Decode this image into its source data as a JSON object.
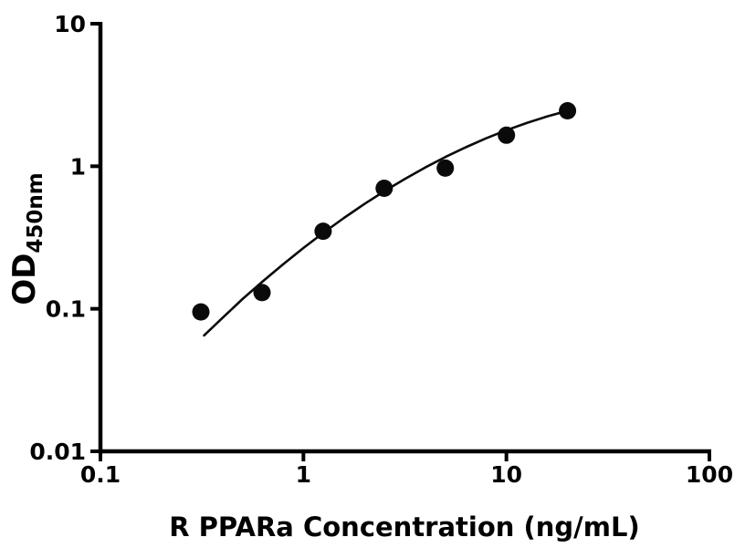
{
  "page": {
    "background": "#ffffff"
  },
  "chart_data": {
    "type": "scatter",
    "title": "",
    "xlabel": "R PPARa Concentration (ng/mL)",
    "ylabel": "OD450nm",
    "ylabel_main": "OD",
    "ylabel_sub": "450nm",
    "x_scale": "log",
    "y_scale": "log",
    "xlim": [
      0.1,
      100
    ],
    "ylim": [
      0.01,
      10
    ],
    "grid": false,
    "legend": false,
    "x_ticks": {
      "values": [
        0.1,
        1,
        10,
        100
      ],
      "labels": [
        "0.1",
        "1",
        "10",
        "100"
      ]
    },
    "y_ticks": {
      "values": [
        0.01,
        0.1,
        1,
        10
      ],
      "labels": [
        "0.01",
        "0.1",
        "1",
        "10"
      ]
    },
    "colors": {
      "axis": "#000000",
      "text": "#000000",
      "marker": "#0a0a0a",
      "curve": "#0a0a0a",
      "background": "#ffffff"
    },
    "series": [
      {
        "name": "fit-curve",
        "type": "line",
        "stroke": {
          "color": "#0a0a0a",
          "width": 2.6
        },
        "x": [
          0.324,
          0.398,
          0.501,
          0.631,
          0.794,
          1.0,
          1.259,
          1.585,
          1.995,
          2.512,
          3.162,
          3.981,
          5.012,
          6.31,
          7.943,
          10.0,
          12.589,
          15.849,
          20.0
        ],
        "y": [
          0.065,
          0.086,
          0.117,
          0.156,
          0.205,
          0.267,
          0.343,
          0.434,
          0.543,
          0.67,
          0.815,
          0.98,
          1.162,
          1.359,
          1.57,
          1.789,
          2.012,
          2.234,
          2.449
        ]
      },
      {
        "name": "standards",
        "type": "scatter",
        "marker": {
          "shape": "circle",
          "radius": 9.5,
          "color": "#0a0a0a"
        },
        "x": [
          0.3125,
          0.625,
          1.25,
          2.5,
          5,
          10,
          20
        ],
        "y": [
          0.095,
          0.13,
          0.35,
          0.7,
          0.97,
          1.65,
          2.45
        ]
      }
    ]
  }
}
